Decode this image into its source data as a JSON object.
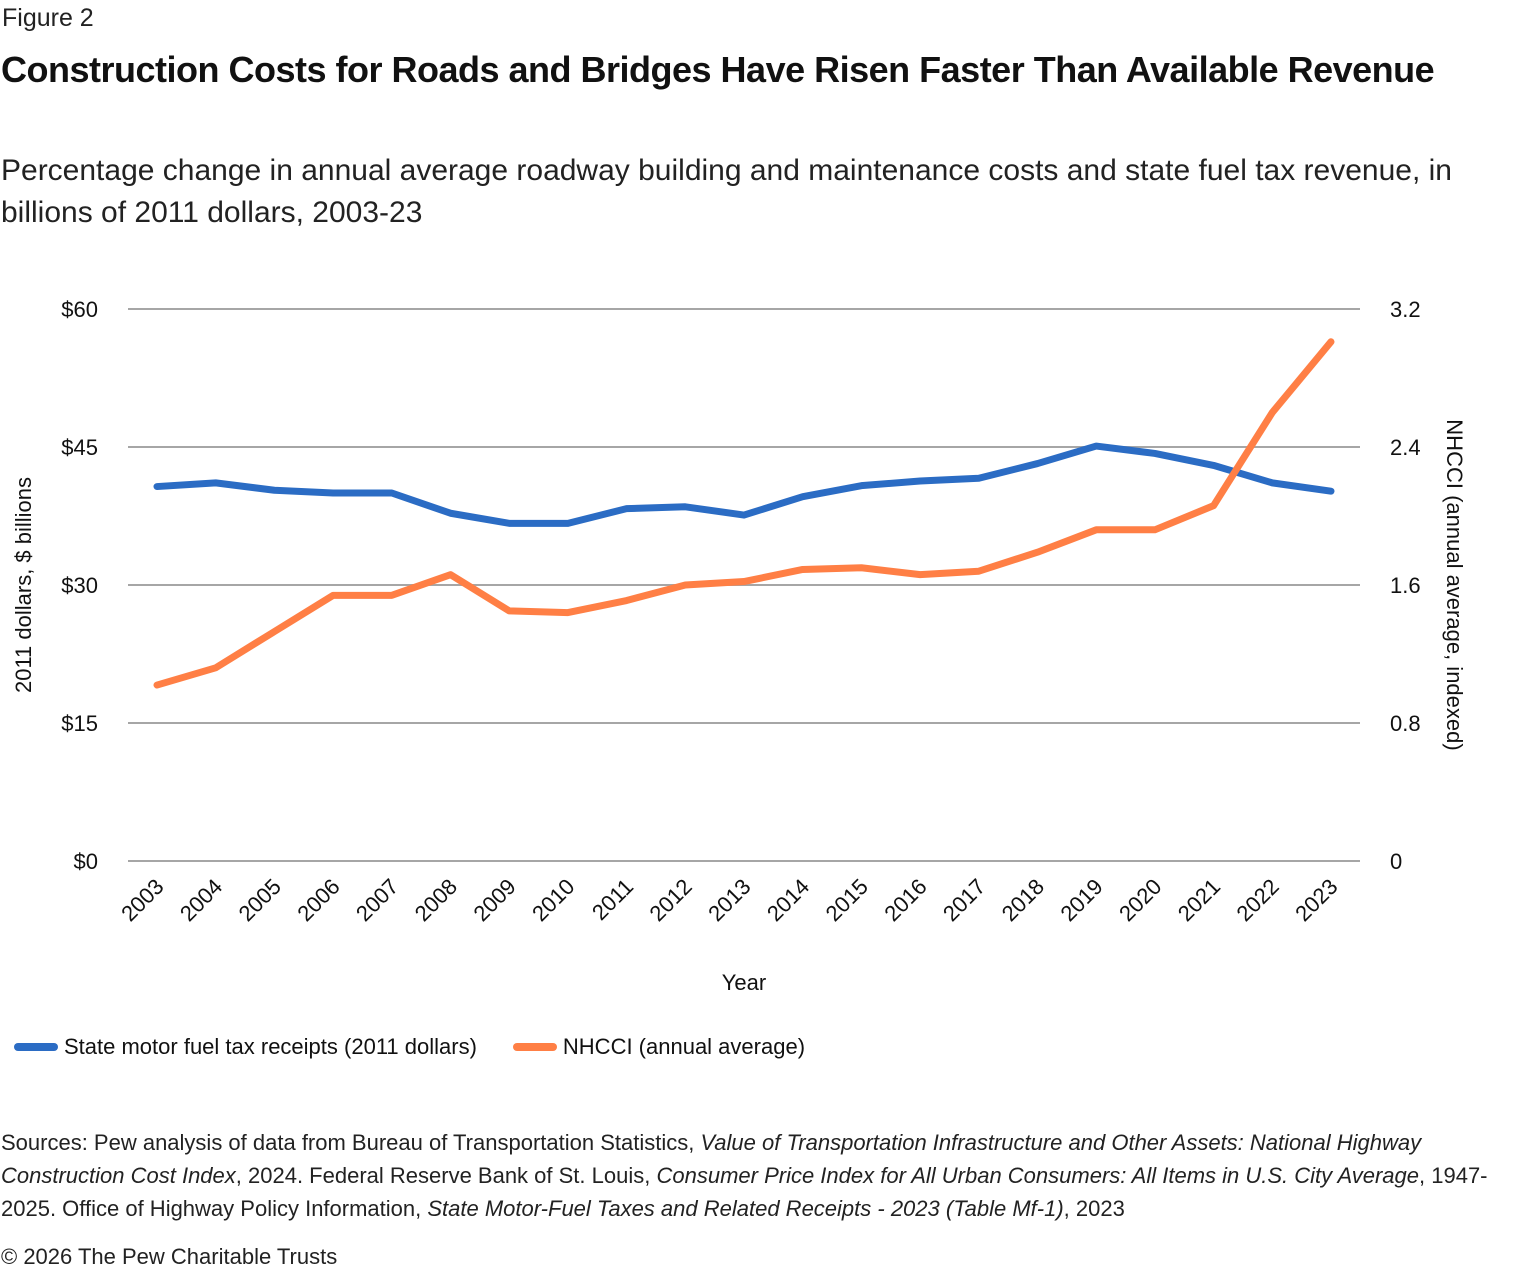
{
  "figure_label": "Figure 2",
  "title": "Construction Costs for Roads and Bridges Have Risen Faster Than Available Revenue",
  "subtitle": "Percentage change in annual average roadway building and maintenance costs and state fuel tax revenue, in billions of 2011 dollars, 2003-23",
  "chart_data": {
    "type": "line",
    "title": "Construction Costs for Roads and Bridges Have Risen Faster Than Available Revenue",
    "xlabel": "Year",
    "ylabel": "2011 dollars, $ billions",
    "y2label": "NHCCI (annual average, indexed)",
    "x": [
      "2003",
      "2004",
      "2005",
      "2006",
      "2007",
      "2008",
      "2009",
      "2010",
      "2011",
      "2012",
      "2013",
      "2014",
      "2015",
      "2016",
      "2017",
      "2018",
      "2019",
      "2020",
      "2021",
      "2022",
      "2023"
    ],
    "ylim": [
      0,
      60
    ],
    "y2lim": [
      0,
      3.2
    ],
    "yticks": [
      0,
      15,
      30,
      45,
      60
    ],
    "ytick_labels": [
      "$0",
      "$15",
      "$30",
      "$45",
      "$60"
    ],
    "y2ticks": [
      0,
      0.8,
      1.6,
      2.4,
      3.2
    ],
    "y2tick_labels": [
      "0",
      "0.8",
      "1.6",
      "2.4",
      "3.2"
    ],
    "grid": true,
    "legend_position": "bottom-left",
    "series": [
      {
        "name": "State motor fuel tax receipts (2011 dollars)",
        "axis": "left",
        "color": "#2b6cc4",
        "values": [
          40.7,
          41.1,
          40.3,
          40.0,
          40.0,
          37.8,
          36.7,
          36.7,
          38.3,
          38.5,
          37.6,
          39.6,
          40.8,
          41.3,
          41.6,
          43.2,
          45.1,
          44.3,
          43.0,
          41.1,
          40.2
        ]
      },
      {
        "name": "NHCCI (annual average)",
        "axis": "right",
        "color": "#ff7f45",
        "values": [
          1.02,
          1.12,
          1.33,
          1.54,
          1.54,
          1.66,
          1.45,
          1.44,
          1.51,
          1.6,
          1.62,
          1.69,
          1.7,
          1.66,
          1.68,
          1.79,
          1.92,
          1.92,
          2.06,
          2.6,
          3.01
        ]
      }
    ]
  },
  "sources": {
    "parts": [
      {
        "text": "Sources: Pew analysis of data from Bureau of Transportation Statistics, ",
        "italic": false
      },
      {
        "text": "Value of Transportation Infrastructure and Other Assets: National Highway Construction Cost Index",
        "italic": true
      },
      {
        "text": ", 2024. Federal Reserve Bank of St. Louis, ",
        "italic": false
      },
      {
        "text": "Consumer Price Index for All Urban Consumers: All Items in U.S. City Average",
        "italic": true
      },
      {
        "text": ", 1947-2025. Office of Highway Policy Information, ",
        "italic": false
      },
      {
        "text": "State Motor-Fuel Taxes and Related Receipts - 2023 (Table Mf-1)",
        "italic": true
      },
      {
        "text": ", 2023",
        "italic": false
      }
    ]
  },
  "copyright": "© 2026 The Pew Charitable Trusts"
}
